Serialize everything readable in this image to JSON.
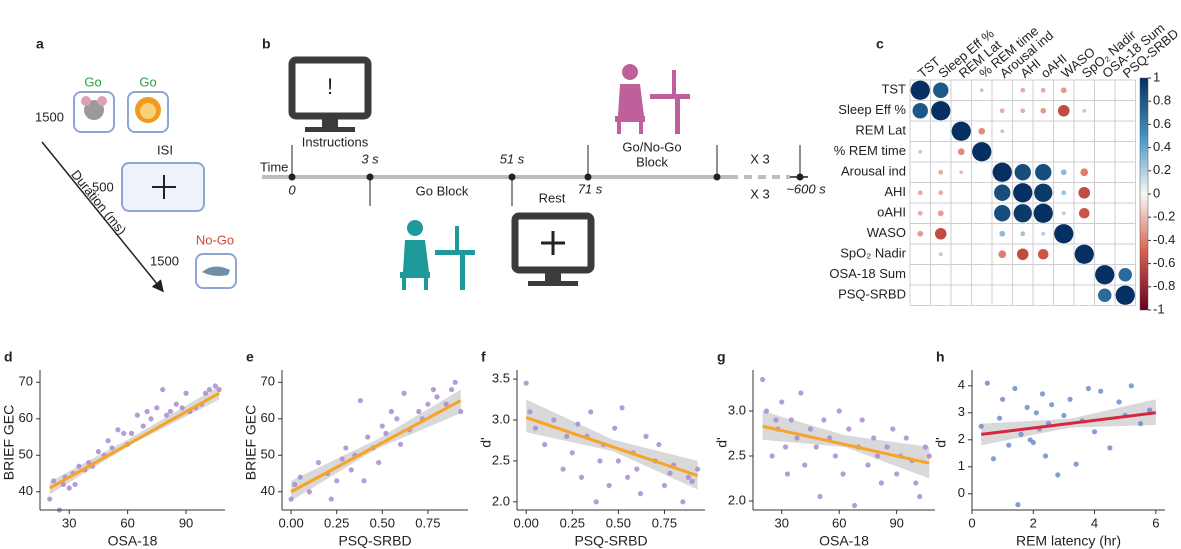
{
  "panel_a": {
    "letter": "a",
    "go_1": "Go",
    "go_2": "Go",
    "duration_1": "1500",
    "isi": "ISI",
    "duration_2": "500",
    "no_go": "No-Go",
    "duration_3": "1500",
    "axis_label": "Duration (ms)"
  },
  "panel_b": {
    "letter": "b",
    "instructions": "Instructions",
    "instruction_symbol": "!",
    "time_label": "Time",
    "t0": "0",
    "t1": "3 s",
    "t2": "51 s",
    "t3": "71 s",
    "t4": "~600 s",
    "go_block": "Go Block",
    "rest": "Rest",
    "go_nogo_block": [
      "Go/No-Go",
      "Block"
    ],
    "repeat_1": "X 3",
    "repeat_2": "X 3"
  },
  "chart_data": [
    {
      "type": "correlation",
      "letter": "c",
      "labels": [
        "TST",
        "Sleep Eff %",
        "REM Lat",
        "% REM time",
        "Arousal ind",
        "AHI",
        "oAHI",
        "WASO",
        "SpO₂ Nadir",
        "OSA-18 Sum",
        "PSQ-SRBD"
      ],
      "values": [
        [
          1,
          0.8,
          null,
          0.2,
          null,
          -0.25,
          -0.25,
          -0.3,
          null,
          null,
          null
        ],
        [
          0.8,
          1,
          null,
          null,
          -0.25,
          -0.25,
          -0.3,
          -0.6,
          0.2,
          null,
          null
        ],
        [
          null,
          null,
          1,
          -0.35,
          -0.2,
          null,
          null,
          null,
          null,
          null,
          null
        ],
        [
          0.2,
          null,
          -0.35,
          1,
          null,
          null,
          null,
          null,
          null,
          null,
          null
        ],
        [
          null,
          -0.25,
          -0.2,
          null,
          1,
          0.85,
          0.85,
          0.3,
          -0.4,
          null,
          null
        ],
        [
          -0.25,
          -0.25,
          null,
          null,
          0.85,
          1,
          0.95,
          0.25,
          -0.6,
          null,
          null
        ],
        [
          -0.25,
          -0.3,
          null,
          null,
          0.85,
          0.95,
          1,
          0.2,
          -0.55,
          null,
          null
        ],
        [
          -0.3,
          -0.6,
          null,
          null,
          0.3,
          0.25,
          0.2,
          1,
          null,
          null,
          null
        ],
        [
          null,
          0.2,
          null,
          null,
          -0.4,
          -0.6,
          -0.55,
          null,
          1,
          null,
          null
        ],
        [
          null,
          null,
          null,
          null,
          null,
          null,
          null,
          null,
          null,
          1,
          0.7
        ],
        [
          null,
          null,
          null,
          null,
          null,
          null,
          null,
          null,
          null,
          0.7,
          1
        ]
      ],
      "zlim": [
        -1,
        1
      ],
      "zticks": [
        1,
        0.8,
        0.6,
        0.4,
        0.2,
        0,
        -0.2,
        -0.4,
        -0.6,
        -0.8,
        -1
      ]
    },
    {
      "type": "scatter",
      "letter": "d",
      "xlabel": "OSA-18",
      "ylabel": "BRIEF GEC",
      "color": "#a88bd0",
      "x": [
        20,
        22,
        25,
        27,
        28,
        30,
        32,
        33,
        35,
        38,
        40,
        42,
        45,
        48,
        50,
        52,
        55,
        58,
        60,
        62,
        65,
        68,
        70,
        72,
        75,
        78,
        80,
        82,
        85,
        88,
        90,
        92,
        95,
        98,
        100,
        102,
        105,
        107
      ],
      "y": [
        38,
        43,
        35,
        42,
        44,
        41,
        45,
        42,
        47,
        46,
        48,
        47,
        51,
        50,
        54,
        52,
        57,
        56,
        53,
        56,
        61,
        58,
        62,
        60,
        63,
        68,
        61,
        62,
        64,
        63,
        67,
        62,
        63,
        64,
        67,
        68,
        69,
        68
      ],
      "fit": {
        "x": [
          20,
          107
        ],
        "y": [
          41,
          67
        ],
        "color": "#f7a325"
      },
      "band": {
        "x": [
          20,
          63,
          107
        ],
        "lower": [
          39.3,
          53.3,
          65.3
        ],
        "upper": [
          42.7,
          55.2,
          68.9
        ],
        "color": "#cfcfcf"
      },
      "xlim": [
        15,
        110
      ],
      "ylim": [
        35,
        72
      ],
      "xticks": [
        30,
        60,
        90
      ],
      "yticks": [
        40,
        50,
        60,
        70
      ]
    },
    {
      "type": "scatter",
      "letter": "e",
      "xlabel": "PSQ-SRBD",
      "ylabel": "BRIEF GEC",
      "color": "#a88bd0",
      "x": [
        0,
        0.02,
        0.05,
        0.1,
        0.15,
        0.2,
        0.22,
        0.25,
        0.28,
        0.3,
        0.33,
        0.35,
        0.38,
        0.4,
        0.42,
        0.45,
        0.48,
        0.5,
        0.52,
        0.55,
        0.58,
        0.6,
        0.62,
        0.65,
        0.7,
        0.72,
        0.75,
        0.78,
        0.8,
        0.85,
        0.88,
        0.9,
        0.93
      ],
      "y": [
        38,
        42,
        44,
        40,
        48,
        45,
        38,
        43,
        49,
        52,
        46,
        50,
        65,
        43,
        55,
        52,
        48,
        58,
        56,
        62,
        60,
        53,
        67,
        57,
        62,
        60,
        64,
        68,
        66,
        64,
        68,
        70,
        62
      ],
      "fit": {
        "x": [
          0,
          0.93
        ],
        "y": [
          40,
          65
        ],
        "color": "#f7a325"
      },
      "band": {
        "x": [
          0,
          0.47,
          0.93
        ],
        "lower": [
          37.5,
          51.8,
          61.5
        ],
        "upper": [
          43,
          54.3,
          68
        ],
        "color": "#cfcfcf"
      },
      "xlim": [
        -0.05,
        0.97
      ],
      "ylim": [
        35,
        72
      ],
      "xticks": [
        {
          "value": 0,
          "label": "0.00"
        },
        {
          "value": 0.25,
          "label": "0.25"
        },
        {
          "value": 0.5,
          "label": "0.50"
        },
        {
          "value": 0.75,
          "label": "0.75"
        }
      ],
      "yticks": [
        40,
        50,
        60,
        70
      ]
    },
    {
      "type": "scatter",
      "letter": "f",
      "xlabel": "PSQ-SRBD",
      "ylabel": "d'",
      "color": "#a88bd0",
      "x": [
        0,
        0.02,
        0.05,
        0.1,
        0.15,
        0.2,
        0.22,
        0.25,
        0.28,
        0.3,
        0.33,
        0.35,
        0.38,
        0.4,
        0.42,
        0.45,
        0.48,
        0.5,
        0.52,
        0.55,
        0.58,
        0.6,
        0.62,
        0.65,
        0.7,
        0.72,
        0.75,
        0.78,
        0.8,
        0.85,
        0.88,
        0.9,
        0.93
      ],
      "y": [
        3.45,
        3.1,
        2.9,
        2.7,
        3.0,
        2.4,
        2.8,
        2.6,
        2.95,
        2.3,
        2.8,
        3.1,
        2.0,
        2.5,
        2.7,
        2.2,
        2.9,
        2.5,
        3.15,
        2.3,
        2.6,
        2.4,
        2.1,
        2.8,
        2.5,
        2.7,
        2.2,
        2.35,
        2.45,
        2.0,
        2.3,
        2.25,
        2.4
      ],
      "fit": {
        "x": [
          0,
          0.93
        ],
        "y": [
          3.03,
          2.32
        ],
        "color": "#f7a325"
      },
      "band": {
        "x": [
          0,
          0.47,
          0.93
        ],
        "lower": [
          2.85,
          2.62,
          2.15
        ],
        "upper": [
          3.25,
          2.76,
          2.5
        ],
        "color": "#cfcfcf"
      },
      "xlim": [
        -0.05,
        0.97
      ],
      "ylim": [
        1.9,
        3.55
      ],
      "xticks": [
        {
          "value": 0,
          "label": "0.00"
        },
        {
          "value": 0.25,
          "label": "0.25"
        },
        {
          "value": 0.5,
          "label": "0.50"
        },
        {
          "value": 0.75,
          "label": "0.75"
        }
      ],
      "yticks": [
        {
          "value": 2,
          "label": "2.0"
        },
        {
          "value": 2.5,
          "label": "2.5"
        },
        {
          "value": 3,
          "label": "3.0"
        },
        {
          "value": 3.5,
          "label": "3.5"
        }
      ]
    },
    {
      "type": "scatter",
      "letter": "g",
      "xlabel": "OSA-18",
      "ylabel": "d'",
      "color": "#a88bd0",
      "x": [
        20,
        22,
        25,
        27,
        28,
        30,
        32,
        33,
        35,
        38,
        40,
        42,
        45,
        48,
        50,
        52,
        55,
        58,
        60,
        62,
        65,
        68,
        70,
        72,
        75,
        78,
        80,
        82,
        85,
        88,
        90,
        92,
        95,
        98,
        100,
        102,
        105,
        107
      ],
      "y": [
        3.35,
        3.0,
        2.5,
        2.9,
        2.8,
        3.1,
        2.6,
        2.3,
        2.9,
        2.7,
        3.2,
        2.4,
        2.8,
        2.6,
        2.05,
        2.9,
        2.7,
        2.5,
        3.0,
        2.3,
        2.8,
        1.95,
        2.6,
        2.9,
        2.4,
        2.7,
        2.5,
        2.2,
        2.6,
        2.8,
        2.3,
        2.5,
        2.7,
        2.45,
        2.2,
        2.05,
        2.6,
        2.5
      ],
      "fit": {
        "x": [
          20,
          107
        ],
        "y": [
          2.83,
          2.42
        ],
        "color": "#f7a325"
      },
      "band": {
        "x": [
          20,
          63,
          107
        ],
        "lower": [
          2.68,
          2.6,
          2.25
        ],
        "upper": [
          3.0,
          2.73,
          2.6
        ],
        "color": "#cfcfcf"
      },
      "xlim": [
        15,
        110
      ],
      "ylim": [
        1.9,
        3.4
      ],
      "xticks": [
        30,
        60,
        90
      ],
      "yticks": [
        {
          "value": 2,
          "label": "2.0"
        },
        {
          "value": 2.5,
          "label": "2.5"
        },
        {
          "value": 3,
          "label": "3.0"
        }
      ]
    },
    {
      "type": "scatter",
      "letter": "h",
      "xlabel": "REM latency (hr)",
      "ylabel": "d'",
      "color": "#6d8dc9",
      "x": [
        0.3,
        0.5,
        0.7,
        0.9,
        1.0,
        1.2,
        1.4,
        1.5,
        1.6,
        1.8,
        1.9,
        2.0,
        2.1,
        2.2,
        2.3,
        2.4,
        2.5,
        2.6,
        2.8,
        3.0,
        3.2,
        3.4,
        3.6,
        3.8,
        4.0,
        4.2,
        4.5,
        4.8,
        5.0,
        5.2,
        5.5,
        5.8
      ],
      "y": [
        2.5,
        4.1,
        1.3,
        2.8,
        3.5,
        1.8,
        3.9,
        -0.4,
        2.2,
        3.2,
        2.0,
        1.9,
        3.0,
        2.4,
        3.7,
        1.4,
        2.6,
        3.3,
        0.7,
        2.9,
        3.5,
        1.1,
        2.7,
        3.9,
        2.3,
        3.8,
        1.7,
        3.4,
        2.9,
        4.0,
        2.6,
        3.1
      ],
      "fit": {
        "x": [
          0.3,
          6
        ],
        "y": [
          2.2,
          3.0
        ],
        "color": "#d7263d"
      },
      "band": {
        "x": [
          0.3,
          3.2,
          6
        ],
        "lower": [
          1.8,
          2.45,
          2.55
        ],
        "upper": [
          2.6,
          2.78,
          3.5
        ],
        "color": "#cfcfcf"
      },
      "xlim": [
        0,
        6.3
      ],
      "ylim": [
        -0.6,
        4.4
      ],
      "xticks": [
        0,
        2,
        4,
        6
      ],
      "yticks": [
        0,
        1,
        2,
        3,
        4
      ]
    }
  ]
}
